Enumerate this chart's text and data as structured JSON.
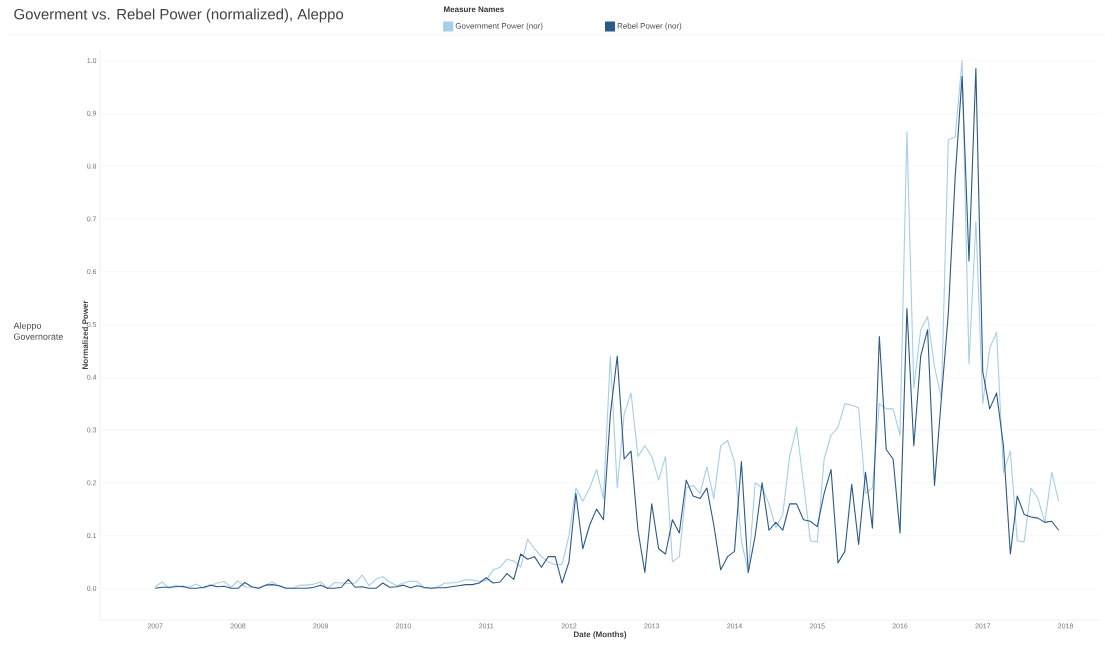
{
  "chart_data": {
    "type": "line",
    "title": "Goverment vs. Rebel Power (normalized), Aleppo",
    "xlabel": "Date (Months)",
    "ylabel": "Normalized Power",
    "legend_title": "Measure Names",
    "annotations": [
      "Aleppo Governorate"
    ],
    "x": [
      "2007-01",
      "2007-02",
      "2007-03",
      "2007-04",
      "2007-05",
      "2007-06",
      "2007-07",
      "2007-08",
      "2007-09",
      "2007-10",
      "2007-11",
      "2007-12",
      "2008-01",
      "2008-02",
      "2008-03",
      "2008-04",
      "2008-05",
      "2008-06",
      "2008-07",
      "2008-08",
      "2008-09",
      "2008-10",
      "2008-11",
      "2008-12",
      "2009-01",
      "2009-02",
      "2009-03",
      "2009-04",
      "2009-05",
      "2009-06",
      "2009-07",
      "2009-08",
      "2009-09",
      "2009-10",
      "2009-11",
      "2009-12",
      "2010-01",
      "2010-02",
      "2010-03",
      "2010-04",
      "2010-05",
      "2010-06",
      "2010-07",
      "2010-08",
      "2010-09",
      "2010-10",
      "2010-11",
      "2010-12",
      "2011-01",
      "2011-02",
      "2011-03",
      "2011-04",
      "2011-05",
      "2011-06",
      "2011-07",
      "2011-08",
      "2011-09",
      "2011-10",
      "2011-11",
      "2011-12",
      "2012-01",
      "2012-02",
      "2012-03",
      "2012-04",
      "2012-05",
      "2012-06",
      "2012-07",
      "2012-08",
      "2012-09",
      "2012-10",
      "2012-11",
      "2012-12",
      "2013-01",
      "2013-02",
      "2013-03",
      "2013-04",
      "2013-05",
      "2013-06",
      "2013-07",
      "2013-08",
      "2013-09",
      "2013-10",
      "2013-11",
      "2013-12",
      "2014-01",
      "2014-02",
      "2014-03",
      "2014-04",
      "2014-05",
      "2014-06",
      "2014-07",
      "2014-08",
      "2014-09",
      "2014-10",
      "2014-11",
      "2014-12",
      "2015-01",
      "2015-02",
      "2015-03",
      "2015-04",
      "2015-05",
      "2015-06",
      "2015-07",
      "2015-08",
      "2015-09",
      "2015-10",
      "2015-11",
      "2015-12",
      "2016-01",
      "2016-02",
      "2016-03",
      "2016-04",
      "2016-05",
      "2016-06",
      "2016-07",
      "2016-08",
      "2016-09",
      "2016-10",
      "2016-11",
      "2016-12",
      "2017-01",
      "2017-02",
      "2017-03",
      "2017-04",
      "2017-05",
      "2017-06",
      "2017-07",
      "2017-08",
      "2017-09",
      "2017-10",
      "2017-11",
      "2017-12"
    ],
    "series": [
      {
        "name": "Government Power (nor)",
        "color": "#a6cee8",
        "values": [
          0.003,
          0.012,
          0.0,
          0.006,
          0.002,
          0.003,
          0.008,
          0.0,
          0.005,
          0.01,
          0.013,
          0.002,
          0.014,
          0.003,
          0.002,
          0.0,
          0.006,
          0.012,
          0.004,
          0.0,
          0.0,
          0.006,
          0.006,
          0.008,
          0.012,
          0.0,
          0.011,
          0.01,
          0.009,
          0.01,
          0.025,
          0.005,
          0.017,
          0.022,
          0.012,
          0.005,
          0.01,
          0.014,
          0.013,
          0.0,
          0.0,
          0.003,
          0.01,
          0.01,
          0.012,
          0.016,
          0.016,
          0.013,
          0.015,
          0.035,
          0.04,
          0.055,
          0.052,
          0.04,
          0.093,
          0.075,
          0.06,
          0.05,
          0.045,
          0.045,
          0.1,
          0.19,
          0.165,
          0.19,
          0.225,
          0.17,
          0.44,
          0.19,
          0.33,
          0.37,
          0.25,
          0.27,
          0.25,
          0.205,
          0.25,
          0.05,
          0.06,
          0.19,
          0.195,
          0.18,
          0.23,
          0.17,
          0.27,
          0.28,
          0.24,
          0.09,
          0.03,
          0.2,
          0.19,
          0.16,
          0.115,
          0.14,
          0.25,
          0.305,
          0.2,
          0.09,
          0.088,
          0.245,
          0.29,
          0.305,
          0.35,
          0.347,
          0.342,
          0.18,
          0.19,
          0.35,
          0.34,
          0.34,
          0.29,
          0.865,
          0.38,
          0.49,
          0.515,
          0.42,
          0.36,
          0.85,
          0.855,
          1.0,
          0.425,
          0.695,
          0.35,
          0.455,
          0.485,
          0.22,
          0.26,
          0.09,
          0.088,
          0.19,
          0.17,
          0.125,
          0.22,
          0.165
        ]
      },
      {
        "name": "Rebel Power (nor)",
        "color": "#2b5a86",
        "values": [
          0.0,
          0.002,
          0.002,
          0.003,
          0.004,
          0.0,
          0.0,
          0.002,
          0.006,
          0.003,
          0.004,
          0.0,
          0.0,
          0.011,
          0.003,
          0.0,
          0.006,
          0.007,
          0.005,
          0.0,
          0.0,
          0.0,
          0.0,
          0.002,
          0.006,
          0.0,
          0.0,
          0.002,
          0.017,
          0.002,
          0.003,
          0.0,
          0.0,
          0.01,
          0.002,
          0.003,
          0.006,
          0.001,
          0.005,
          0.002,
          0.0,
          0.001,
          0.001,
          0.003,
          0.005,
          0.007,
          0.007,
          0.01,
          0.02,
          0.01,
          0.012,
          0.028,
          0.017,
          0.065,
          0.055,
          0.06,
          0.04,
          0.06,
          0.06,
          0.01,
          0.05,
          0.18,
          0.075,
          0.12,
          0.15,
          0.13,
          0.33,
          0.44,
          0.245,
          0.26,
          0.11,
          0.03,
          0.16,
          0.075,
          0.065,
          0.13,
          0.105,
          0.205,
          0.175,
          0.17,
          0.19,
          0.12,
          0.035,
          0.06,
          0.07,
          0.24,
          0.03,
          0.1,
          0.2,
          0.11,
          0.125,
          0.11,
          0.16,
          0.16,
          0.13,
          0.127,
          0.117,
          0.18,
          0.225,
          0.048,
          0.07,
          0.197,
          0.083,
          0.22,
          0.114,
          0.477,
          0.263,
          0.245,
          0.105,
          0.53,
          0.27,
          0.44,
          0.49,
          0.195,
          0.36,
          0.52,
          0.78,
          0.97,
          0.62,
          0.985,
          0.41,
          0.34,
          0.37,
          0.27,
          0.065,
          0.175,
          0.14,
          0.135,
          0.133,
          0.125,
          0.127,
          0.11
        ]
      }
    ],
    "xlim": [
      "2006-05",
      "2018-06"
    ],
    "xticks": [
      "2007",
      "2008",
      "2009",
      "2010",
      "2011",
      "2012",
      "2013",
      "2014",
      "2015",
      "2016",
      "2017",
      "2018"
    ],
    "ylim": [
      -0.06,
      1.02
    ],
    "yticks": [
      {
        "value": 0,
        "label": "0.0"
      },
      {
        "value": 0.1,
        "label": "0.1"
      },
      {
        "value": 0.2,
        "label": "0.2"
      },
      {
        "value": 0.3,
        "label": "0.3"
      },
      {
        "value": 0.4,
        "label": "0.4"
      },
      {
        "value": 0.5,
        "label": "0.5"
      },
      {
        "value": 0.6,
        "label": "0.6"
      },
      {
        "value": 0.7,
        "label": "0.7"
      },
      {
        "value": 0.8,
        "label": "0.8"
      },
      {
        "value": 0.9,
        "label": "0.9"
      },
      {
        "value": 1,
        "label": "1.0"
      }
    ],
    "grid": "y",
    "legend": "top",
    "line_style": "solid",
    "marker": "none"
  }
}
